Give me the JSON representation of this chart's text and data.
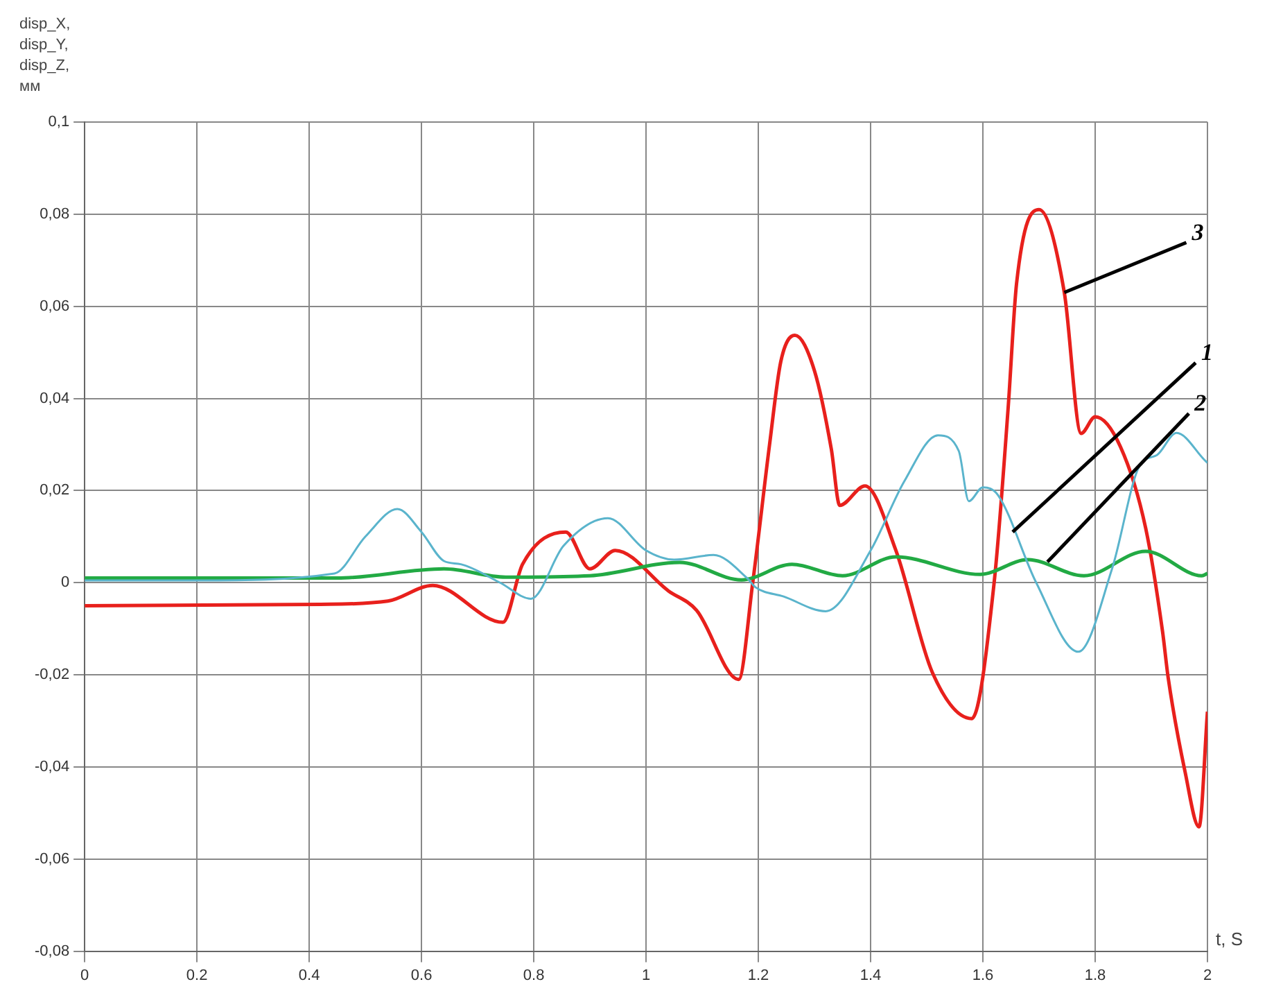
{
  "chart_data": {
    "type": "line",
    "xlabel": "t, S",
    "ylabel": "disp_X,\ndisp_Y,\ndisp_Z,\nмм",
    "xlim": [
      0,
      2
    ],
    "xticks": [
      0,
      0.2,
      0.4,
      0.6,
      0.8,
      1,
      1.2,
      1.4,
      1.6,
      1.8,
      2
    ],
    "ylim": [
      -0.08,
      0.1
    ],
    "yticks": [
      {
        "value": -0.08,
        "label": "-0,08"
      },
      {
        "value": -0.06,
        "label": "-0,06"
      },
      {
        "value": -0.04,
        "label": "-0,04"
      },
      {
        "value": -0.02,
        "label": "-0,02"
      },
      {
        "value": 0,
        "label": "0"
      },
      {
        "value": 0.02,
        "label": "0,02"
      },
      {
        "value": 0.04,
        "label": "0,04"
      },
      {
        "value": 0.06,
        "label": "0,06"
      },
      {
        "value": 0.08,
        "label": "0,08"
      },
      {
        "value": 0.1,
        "label": "0,1"
      }
    ],
    "grid": true,
    "legend": false,
    "marker": "none",
    "line_style": "solid",
    "series": [
      {
        "color": "#5ab4cc",
        "x": [
          0,
          0.2,
          0.445,
          0.5,
          0.557,
          0.6,
          0.64,
          0.67,
          0.74,
          0.795,
          0.853,
          0.932,
          1.0,
          1.05,
          1.12,
          1.18,
          1.195,
          1.245,
          1.32,
          1.4,
          1.46,
          1.52,
          1.557,
          1.575,
          1.6,
          1.627,
          1.695,
          1.77,
          1.83,
          1.88,
          1.91,
          1.945,
          1.995,
          2.0
        ],
        "values": [
          0.0005,
          0.0005,
          0.002,
          0.01,
          0.016,
          0.011,
          0.0047,
          0.004,
          0,
          -0.0035,
          0.008,
          0.014,
          0.007,
          0.005,
          0.006,
          0.001,
          -0.001,
          -0.003,
          -0.0062,
          0.007,
          0.022,
          0.032,
          0.0286,
          0.0177,
          0.0207,
          0.019,
          0,
          -0.015,
          0.003,
          0.0256,
          0.0277,
          0.0325,
          0.0266,
          0.026
        ]
      },
      {
        "color": "#22aa44",
        "x": [
          0,
          0.45,
          0.64,
          0.75,
          0.9,
          1.06,
          1.17,
          1.26,
          1.35,
          1.445,
          1.595,
          1.68,
          1.78,
          1.89,
          1.99,
          2.0
        ],
        "values": [
          0.001,
          0.001,
          0.003,
          0.0012,
          0.0015,
          0.0044,
          0.0006,
          0.004,
          0.0015,
          0.0056,
          0.0018,
          0.005,
          0.0015,
          0.0068,
          0.0015,
          0.002
        ]
      },
      {
        "color": "#e8201c",
        "x": [
          0,
          0.42,
          0.54,
          0.62,
          0.745,
          0.78,
          0.857,
          0.9,
          0.945,
          1.04,
          1.09,
          1.165,
          1.19,
          1.22,
          1.24,
          1.265,
          1.3,
          1.33,
          1.345,
          1.39,
          1.445,
          1.51,
          1.58,
          1.62,
          1.645,
          1.66,
          1.7,
          1.745,
          1.775,
          1.8,
          1.845,
          1.89,
          1.92,
          1.93,
          1.96,
          1.985,
          2.0
        ],
        "values": [
          -0.005,
          -0.0047,
          -0.004,
          -0.0006,
          -0.0086,
          0.004,
          0.011,
          0.003,
          0.007,
          -0.0018,
          -0.006,
          -0.021,
          0,
          0.03,
          0.048,
          0.0537,
          0.046,
          0.029,
          0.0168,
          0.021,
          0.007,
          -0.0195,
          -0.0295,
          0,
          0.038,
          0.065,
          0.081,
          0.063,
          0.0324,
          0.036,
          0.0295,
          0.0118,
          -0.0106,
          -0.0206,
          -0.041,
          -0.053,
          -0.028
        ]
      }
    ],
    "annotations": [
      {
        "text": "3",
        "x": 1.745,
        "y": 0.063
      },
      {
        "text": "1",
        "x": 1.653,
        "y": 0.011
      },
      {
        "text": "2",
        "x": 1.715,
        "y": 0.0045
      }
    ]
  }
}
